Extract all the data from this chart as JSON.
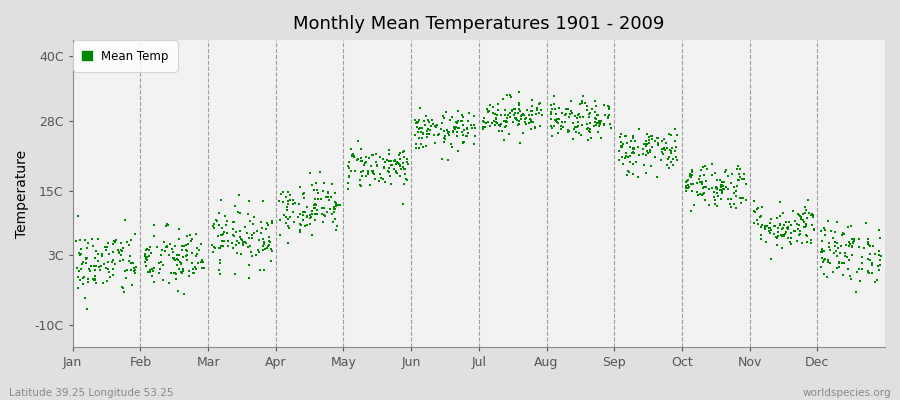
{
  "title": "Monthly Mean Temperatures 1901 - 2009",
  "ylabel": "Temperature",
  "bottom_left_text": "Latitude 39.25 Longitude 53.25",
  "bottom_right_text": "worldspecies.org",
  "ytick_labels": [
    "-10C",
    "3C",
    "15C",
    "28C",
    "40C"
  ],
  "ytick_values": [
    -10,
    3,
    15,
    28,
    40
  ],
  "ylim": [
    -14,
    43
  ],
  "month_labels": [
    "Jan",
    "Feb",
    "Mar",
    "Apr",
    "May",
    "Jun",
    "Jul",
    "Aug",
    "Sep",
    "Oct",
    "Nov",
    "Dec"
  ],
  "dot_color": "#008800",
  "bg_color": "#e0e0e0",
  "plot_bg_color": "#f2f2f2",
  "legend_label": "Mean Temp",
  "n_years": 109,
  "monthly_means": [
    1.5,
    2.2,
    6.5,
    12.0,
    19.5,
    26.0,
    29.0,
    28.0,
    22.5,
    16.0,
    8.5,
    3.5
  ],
  "monthly_stds": [
    3.2,
    3.0,
    2.8,
    2.5,
    2.0,
    1.8,
    1.8,
    1.8,
    2.2,
    2.2,
    2.2,
    2.8
  ]
}
